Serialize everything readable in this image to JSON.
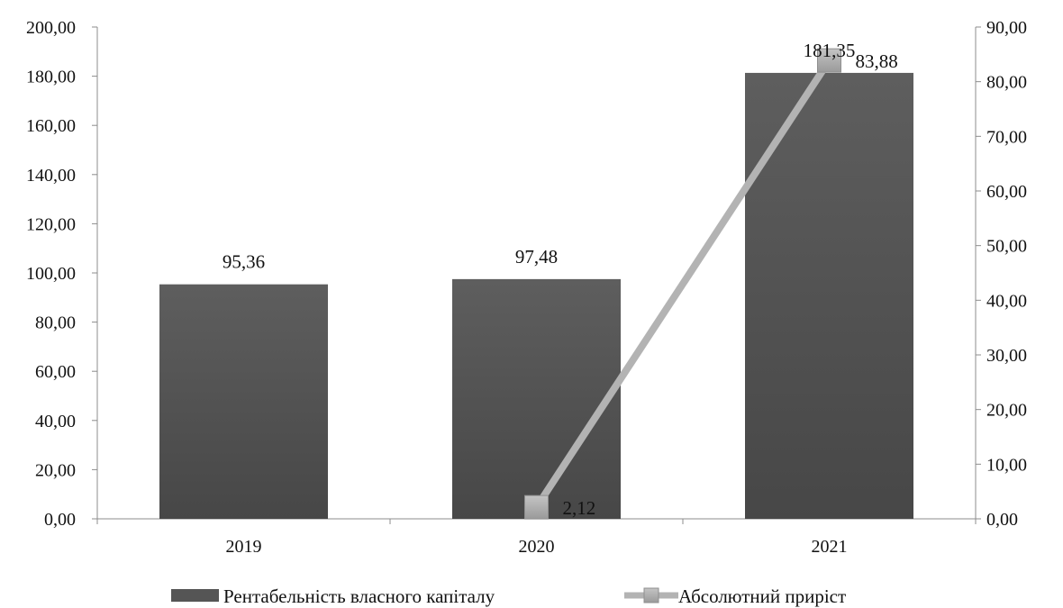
{
  "chart_data": {
    "type": "bar",
    "categories": [
      "2019",
      "2020",
      "2021"
    ],
    "series": [
      {
        "name": "Рентабельність власного капіталу",
        "kind": "bar",
        "axis": "left",
        "values": [
          95.36,
          97.48,
          181.35
        ],
        "labels": [
          "95,36",
          "97,48",
          "181,35"
        ],
        "color": "#555555"
      },
      {
        "name": "Абсолютний приріст",
        "kind": "line",
        "axis": "right",
        "values": [
          null,
          2.12,
          83.88
        ],
        "labels": [
          "",
          "2,12",
          "83,88"
        ],
        "color": "#b3b3b3",
        "marker": "square"
      }
    ],
    "y_left": {
      "range": [
        0,
        200
      ],
      "ticks": [
        "0,00",
        "20,00",
        "40,00",
        "60,00",
        "80,00",
        "100,00",
        "120,00",
        "140,00",
        "160,00",
        "180,00",
        "200,00"
      ]
    },
    "y_right": {
      "range": [
        0,
        90
      ],
      "ticks": [
        "0,00",
        "10,00",
        "20,00",
        "30,00",
        "40,00",
        "50,00",
        "60,00",
        "70,00",
        "80,00",
        "90,00"
      ]
    },
    "grid": false,
    "legend_position": "bottom"
  }
}
